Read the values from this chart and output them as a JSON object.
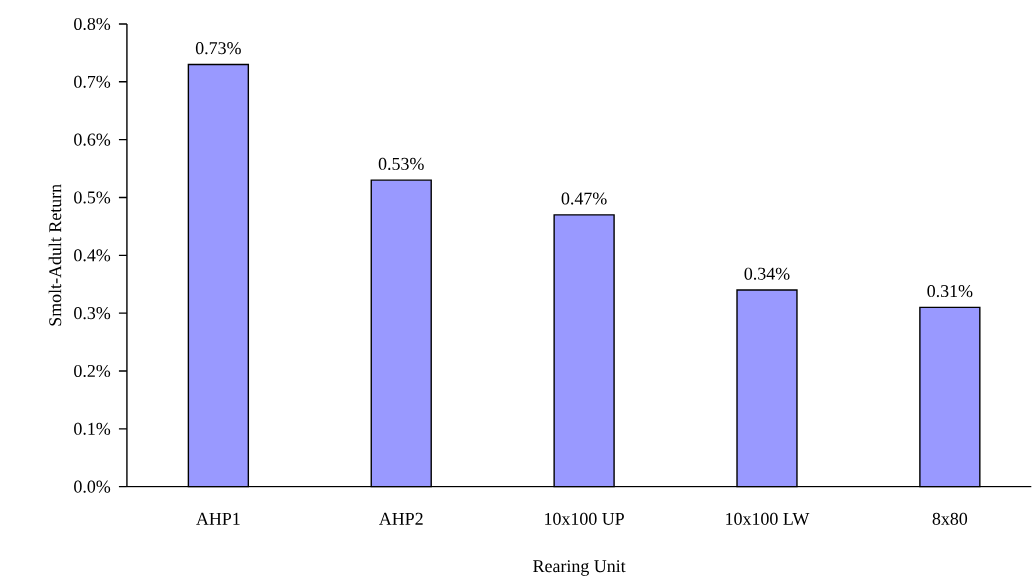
{
  "chart_data": {
    "type": "bar",
    "xlabel": "Rearing Unit",
    "ylabel": "Smolt-Adult Return",
    "categories": [
      "AHP1",
      "AHP2",
      "10x100 UP",
      "10x100 LW",
      "8x80"
    ],
    "values": [
      0.73,
      0.53,
      0.47,
      0.34,
      0.31
    ],
    "value_labels": [
      "0.73%",
      "0.53%",
      "0.47%",
      "0.34%",
      "0.31%"
    ],
    "color": "#9999ff",
    "ylim": [
      0,
      0.8
    ],
    "yticks": [
      {
        "value": 0,
        "label": "0.0%"
      },
      {
        "value": 0.1,
        "label": "0.1%"
      },
      {
        "value": 0.2,
        "label": "0.2%"
      },
      {
        "value": 0.3,
        "label": "0.3%"
      },
      {
        "value": 0.4,
        "label": "0.4%"
      },
      {
        "value": 0.5,
        "label": "0.5%"
      },
      {
        "value": 0.6,
        "label": "0.6%"
      },
      {
        "value": 0.7,
        "label": "0.7%"
      },
      {
        "value": 0.8,
        "label": "0.8%"
      }
    ],
    "grid": false
  }
}
